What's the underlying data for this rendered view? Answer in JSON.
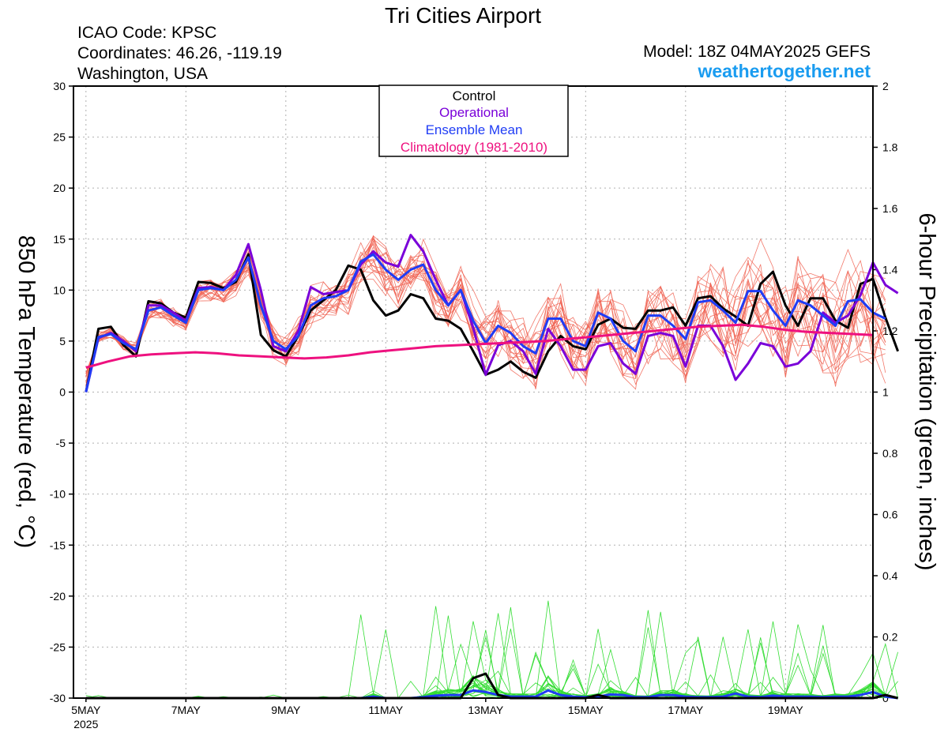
{
  "header": {
    "title": "Tri Cities Airport",
    "icao": "ICAO Code: KPSC",
    "coords": "Coordinates: 46.26, -119.19",
    "region": "Washington, USA",
    "model": "Model: 18Z 04MAY2025 GEFS",
    "site": "weathertogether.net"
  },
  "colors": {
    "control": "#000000",
    "operational": "#7a00d9",
    "mean": "#1f3cf5",
    "climatology": "#ee117f",
    "members": "#f06050",
    "precip": "#33dd33"
  },
  "chart_data": {
    "type": "line",
    "xlabel": "",
    "ylabel": "850 hPa Temperature (red, °C)",
    "y2label": "6-hour Precipitation (green, inches)",
    "ylim": [
      -30,
      30
    ],
    "y2lim": [
      0,
      2
    ],
    "x_unit": "days since 5MAY 2025 00Z",
    "xlim": [
      -0.25,
      15.75
    ],
    "x_ticks": [
      {
        "x": 0,
        "label": "5MAY",
        "sub": "2025"
      },
      {
        "x": 2,
        "label": "7MAY",
        "sub": ""
      },
      {
        "x": 4,
        "label": "9MAY",
        "sub": ""
      },
      {
        "x": 6,
        "label": "11MAY",
        "sub": ""
      },
      {
        "x": 8,
        "label": "13MAY",
        "sub": ""
      },
      {
        "x": 10,
        "label": "15MAY",
        "sub": ""
      },
      {
        "x": 12,
        "label": "17MAY",
        "sub": ""
      },
      {
        "x": 14,
        "label": "19MAY",
        "sub": ""
      }
    ],
    "y_ticks": [
      30,
      25,
      20,
      15,
      10,
      5,
      0,
      -5,
      -10,
      -15,
      -20,
      -25,
      -30
    ],
    "y2_ticks": [
      2,
      1.8,
      1.6,
      1.4,
      1.2,
      1,
      0.8,
      0.6,
      0.4,
      0.2,
      0
    ],
    "legend": [
      "Control",
      "Operational",
      "Ensemble Mean",
      "Climatology (1981-2010)"
    ],
    "legend_position": "top-center",
    "series": [
      {
        "name": "Control",
        "color": "#000000",
        "width": 3,
        "values": [
          0,
          6.2,
          6.4,
          4.6,
          3.5,
          8.9,
          8.7,
          7.8,
          7.3,
          10.8,
          10.7,
          10.2,
          10.8,
          13.5,
          5.6,
          4.1,
          3.5,
          5.5,
          8.0,
          9.0,
          10.0,
          12.4,
          12.0,
          9.0,
          7.5,
          8.0,
          9.6,
          9.2,
          7.2,
          7.0,
          6.2,
          4.0,
          1.7,
          2.2,
          3.0,
          2.0,
          1.4,
          4.0,
          5.5,
          4.5,
          4.2,
          6.6,
          7.2,
          6.3,
          6.2,
          8.0,
          8.0,
          8.3,
          6.5,
          9.2,
          9.4,
          8.2,
          7.4,
          6.5,
          10.6,
          11.8,
          8.5,
          6.5,
          9.2,
          9.2,
          7.0,
          6.3,
          10.6,
          11.1,
          7.3,
          4.0
        ]
      },
      {
        "name": "Operational",
        "color": "#7a00d9",
        "width": 3,
        "values": [
          0,
          5.3,
          5.8,
          5.0,
          4.0,
          8.5,
          8.5,
          7.8,
          7.0,
          10.2,
          10.3,
          10.0,
          11.5,
          14.5,
          10.0,
          4.5,
          4.0,
          6.0,
          10.3,
          9.6,
          9.8,
          10.0,
          12.5,
          13.8,
          12.7,
          12.3,
          15.4,
          13.8,
          11.0,
          8.5,
          10.0,
          6.3,
          1.7,
          4.6,
          5.0,
          4.0,
          1.8,
          6.2,
          4.5,
          2.2,
          2.2,
          4.5,
          4.8,
          2.8,
          1.8,
          5.5,
          5.8,
          5.5,
          2.5,
          6.5,
          6.5,
          4.5,
          1.2,
          2.8,
          4.8,
          4.5,
          2.5,
          2.8,
          4.0,
          7.8,
          6.8,
          7.5,
          9.5,
          12.7,
          10.5,
          9.7
        ]
      },
      {
        "name": "Ensemble Mean",
        "color": "#1f3cf5",
        "width": 3,
        "values": [
          0,
          5.4,
          5.7,
          4.8,
          4.2,
          8.0,
          8.3,
          7.5,
          6.8,
          10.0,
          10.2,
          10.0,
          11.0,
          13.2,
          8.5,
          5.0,
          4.2,
          5.5,
          8.5,
          9.2,
          9.4,
          10.0,
          12.8,
          13.5,
          12.0,
          11.0,
          12.0,
          12.5,
          10.0,
          8.5,
          10.0,
          7.0,
          4.8,
          6.5,
          5.8,
          4.5,
          3.8,
          7.2,
          7.2,
          5.0,
          4.5,
          7.8,
          7.2,
          5.0,
          4.0,
          7.5,
          7.5,
          6.5,
          5.2,
          8.8,
          9.0,
          8.0,
          6.8,
          9.9,
          9.9,
          8.0,
          6.5,
          9.0,
          8.5,
          7.5,
          6.5,
          8.9,
          9.1,
          7.8,
          7.2
        ]
      },
      {
        "name": "Climatology (1981-2010)",
        "color": "#ee117f",
        "width": 3,
        "values": [
          2.4,
          3.0,
          3.5,
          3.7,
          3.8,
          3.9,
          3.8,
          3.6,
          3.5,
          3.4,
          3.3,
          3.4,
          3.6,
          3.9,
          4.1,
          4.3,
          4.5,
          4.6,
          4.7,
          4.8,
          4.9,
          5.0,
          5.2,
          5.4,
          5.6,
          5.8,
          6.0,
          6.2,
          6.4,
          6.5,
          6.6,
          6.4,
          6.1,
          5.9,
          5.8,
          5.7,
          5.6
        ]
      },
      {
        "name": "Ensemble mean precip",
        "color": "#1f3cf5",
        "width": 3,
        "axis": "y2",
        "values": [
          0,
          0,
          0,
          0,
          0,
          0,
          0,
          0,
          0,
          0,
          0,
          0,
          0,
          0,
          0,
          0,
          0,
          0,
          0,
          0,
          0,
          0,
          0,
          0.005,
          0,
          0,
          0,
          0.003,
          0.008,
          0.01,
          0.01,
          0.025,
          0.02,
          0.01,
          0.005,
          0.005,
          0.005,
          0.025,
          0.01,
          0.005,
          0.003,
          0.005,
          0.012,
          0.01,
          0.003,
          0.003,
          0.01,
          0.01,
          0.005,
          0.003,
          0.003,
          0.005,
          0.015,
          0.005,
          0.003,
          0.008,
          0.005,
          0.005,
          0.005,
          0.003,
          0.005,
          0.005,
          0.01,
          0.02,
          0.005,
          0
        ]
      },
      {
        "name": "Control precip",
        "color": "#000000",
        "width": 3,
        "axis": "y2",
        "values": [
          0,
          0,
          0,
          0,
          0,
          0,
          0,
          0,
          0,
          0,
          0,
          0,
          0,
          0,
          0,
          0,
          0,
          0,
          0,
          0,
          0,
          0,
          0,
          0,
          0,
          0,
          0,
          0,
          0,
          0,
          0,
          0.065,
          0.08,
          0.01,
          0,
          0,
          0,
          0,
          0,
          0,
          0,
          0.01,
          0,
          0,
          0,
          0,
          0,
          0,
          0,
          0,
          0,
          0,
          0,
          0,
          0,
          0,
          0,
          0,
          0,
          0,
          0,
          0,
          0,
          0,
          0.01,
          0
        ]
      }
    ]
  }
}
